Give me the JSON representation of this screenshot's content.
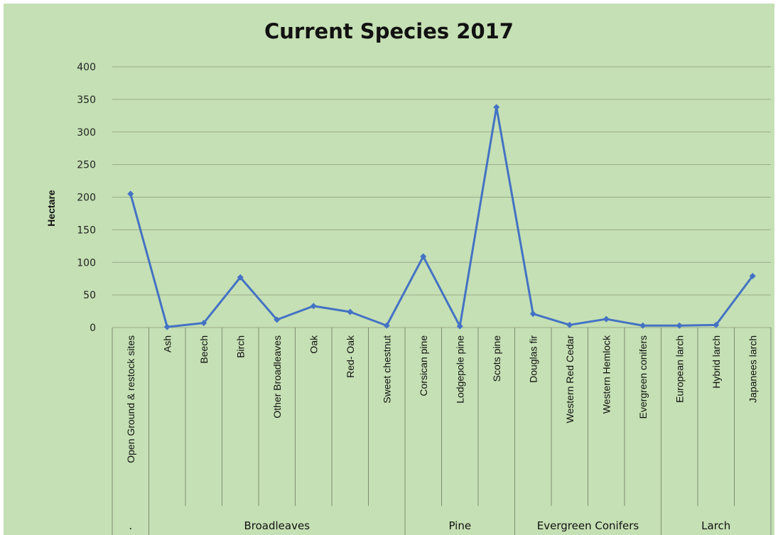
{
  "chart_data": {
    "type": "line",
    "title": "Current Species 2017",
    "ylabel": "Hectare",
    "xlabel": "",
    "ylim": [
      0,
      400
    ],
    "yticks": [
      0,
      50,
      100,
      150,
      200,
      250,
      300,
      350,
      400
    ],
    "grid": true,
    "legend": "none",
    "line_color": "#4472c4",
    "categories": [
      "Open Ground & restock sites",
      "Ash",
      "Beech",
      "Birch",
      "Other Broadleaves",
      "Oak",
      "Red- Oak",
      "Sweet chestnut",
      "Corsican pine",
      "Lodgepole pine",
      "Scots pine",
      "Douglas fir",
      "Western Red Cedar",
      "Western Hemlock",
      "Evergreen conifers",
      "European larch",
      "Hybrid larch",
      "Japanees larch"
    ],
    "groups": [
      {
        "label": ".",
        "count": 1
      },
      {
        "label": "Broadleaves",
        "count": 7
      },
      {
        "label": "Pine",
        "count": 3
      },
      {
        "label": "Evergreen Conifers",
        "count": 4
      },
      {
        "label": "Larch",
        "count": 3
      }
    ],
    "series": [
      {
        "values": [
          205,
          1,
          7,
          77,
          12,
          33,
          24,
          3,
          109,
          2,
          338,
          21,
          4,
          13,
          3,
          3,
          4,
          79
        ]
      }
    ]
  }
}
